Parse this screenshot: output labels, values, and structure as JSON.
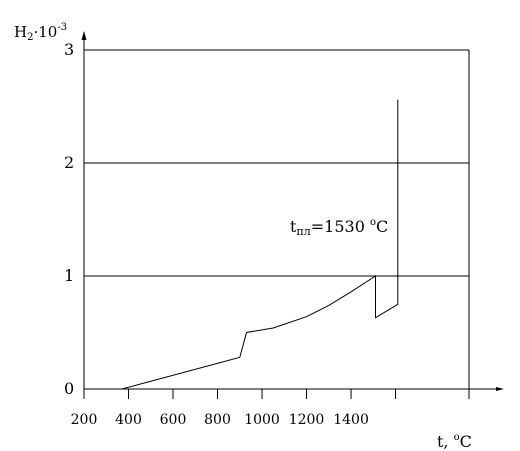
{
  "chart_data": {
    "type": "line",
    "xlabel_base": "t,",
    "xlabel_unit": "C",
    "ylabel_base": "H",
    "ylabel_sub": "2",
    "ylabel_mid": "·10",
    "ylabel_sup": "-3",
    "annotation": {
      "prefix": "t",
      "sub": "пл",
      "value": "=1530",
      "unit": "C",
      "deg": "o"
    },
    "xlim": [
      200,
      1930
    ],
    "ylim": [
      0,
      3
    ],
    "x_ticks": [
      200,
      400,
      600,
      800,
      1000,
      1200,
      1400
    ],
    "x_tick_labels": [
      "200",
      "400",
      "600",
      "800",
      "1000",
      "1200",
      "1400"
    ],
    "x_extra_ticks": [
      1600
    ],
    "y_ticks": [
      0,
      1,
      2,
      3
    ],
    "y_tick_labels": [
      "0",
      "1",
      "2",
      "3"
    ],
    "grid_y": [
      1,
      2,
      3
    ],
    "series": [
      {
        "x": [
          370,
          900,
          930,
          1050,
          1200,
          1300,
          1400,
          1510,
          1510,
          1610,
          1610
        ],
        "y": [
          0,
          0.28,
          0.5,
          0.54,
          0.64,
          0.74,
          0.86,
          1.0,
          0.63,
          0.75,
          2.56
        ]
      }
    ]
  }
}
